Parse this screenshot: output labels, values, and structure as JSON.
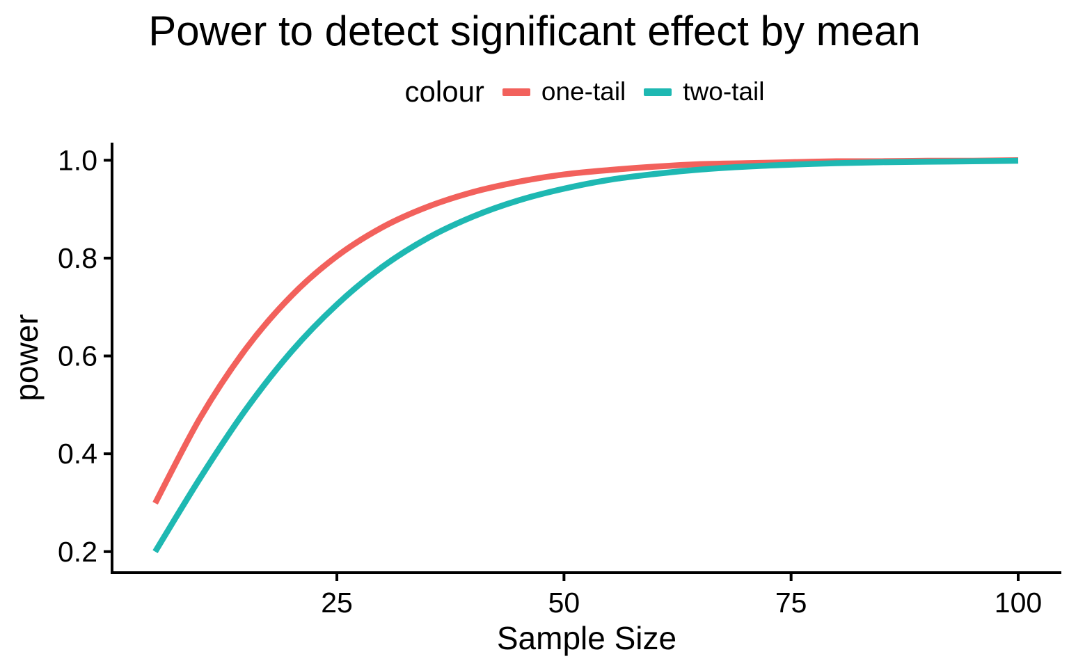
{
  "chart_data": {
    "type": "line",
    "title": "Power to detect significant effect by mean",
    "xlabel": "Sample Size",
    "ylabel": "power",
    "legend_title": "colour",
    "legend_position": "top",
    "grid": false,
    "background": "#FFFFFF",
    "text_color": "#000000",
    "x": [
      5,
      10,
      15,
      20,
      25,
      30,
      35,
      40,
      45,
      50,
      55,
      60,
      65,
      70,
      75,
      80,
      85,
      90,
      95,
      100
    ],
    "series": [
      {
        "name": "one-tail",
        "color": "#F2615C",
        "values": [
          0.299,
          0.475,
          0.615,
          0.723,
          0.804,
          0.863,
          0.905,
          0.935,
          0.956,
          0.971,
          0.98,
          0.987,
          0.992,
          0.994,
          0.996,
          0.998,
          0.998,
          0.999,
          0.999,
          1.0
        ]
      },
      {
        "name": "two-tail",
        "color": "#1EB8B2",
        "values": [
          0.2,
          0.352,
          0.491,
          0.609,
          0.705,
          0.782,
          0.841,
          0.885,
          0.918,
          0.942,
          0.96,
          0.972,
          0.981,
          0.987,
          0.991,
          0.994,
          0.996,
          0.997,
          0.998,
          0.999
        ]
      }
    ],
    "x_ticks": [
      25,
      50,
      75,
      100
    ],
    "y_ticks": [
      0.2,
      0.4,
      0.6,
      0.8,
      1.0
    ],
    "xlim": [
      0.25,
      104.75
    ],
    "ylim": [
      0.157,
      1.036
    ]
  }
}
